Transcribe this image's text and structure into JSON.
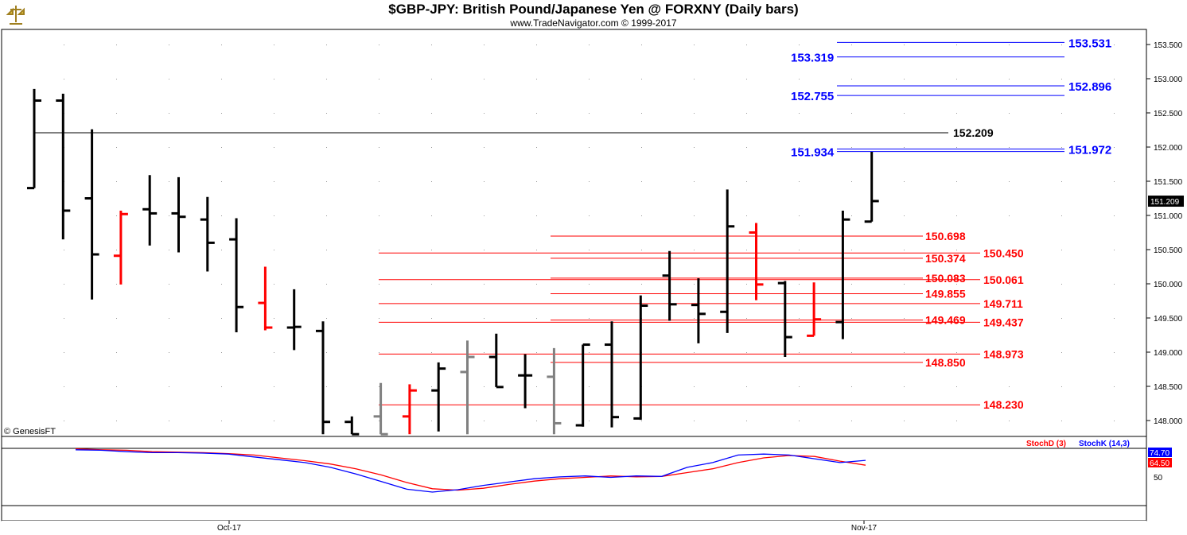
{
  "header": {
    "title": "$GBP-JPY:  British Pound/Japanese Yen @ FORXNY  (Daily bars)",
    "subtitle": "www.TradeNavigator.com © 1999-2017"
  },
  "watermark": "© GenesisFT",
  "colors": {
    "up_bar": "#000000",
    "down_bar": "#ff0000",
    "neutral_bar": "#808080",
    "blue_level": "#0000ff",
    "red_level": "#ff0000",
    "stochD": "#ff0000",
    "stochK": "#0000ff"
  },
  "chart_data": {
    "type": "ohlc",
    "x_ticks": [
      "Oct-17",
      "Nov-17"
    ],
    "y_ticks": [
      "148.000",
      "148.500",
      "149.000",
      "149.500",
      "150.000",
      "150.500",
      "151.000",
      "151.500",
      "152.000",
      "152.500",
      "153.000",
      "153.500"
    ],
    "ylim": [
      147.8,
      153.7
    ],
    "last_price": "151.209",
    "bars": [
      {
        "o": 151.4,
        "h": 152.85,
        "l": 151.4,
        "c": 152.68,
        "color": "black"
      },
      {
        "o": 152.68,
        "h": 152.78,
        "l": 150.65,
        "c": 151.07,
        "color": "black"
      },
      {
        "o": 151.25,
        "h": 152.26,
        "l": 149.77,
        "c": 150.43,
        "color": "black"
      },
      {
        "o": 150.41,
        "h": 151.07,
        "l": 149.99,
        "c": 151.02,
        "color": "red"
      },
      {
        "o": 151.09,
        "h": 151.59,
        "l": 150.56,
        "c": 151.03,
        "color": "black"
      },
      {
        "o": 151.03,
        "h": 151.56,
        "l": 150.46,
        "c": 150.98,
        "color": "black"
      },
      {
        "o": 150.94,
        "h": 151.27,
        "l": 150.18,
        "c": 150.6,
        "color": "black"
      },
      {
        "o": 150.65,
        "h": 150.96,
        "l": 149.29,
        "c": 149.66,
        "color": "black"
      },
      {
        "o": 149.72,
        "h": 150.25,
        "l": 149.32,
        "c": 149.36,
        "color": "red"
      },
      {
        "o": 149.36,
        "h": 149.92,
        "l": 149.03,
        "c": 149.37,
        "color": "black"
      },
      {
        "o": 149.31,
        "h": 149.45,
        "l": 147.8,
        "c": 147.98,
        "color": "black"
      },
      {
        "o": 147.98,
        "h": 148.06,
        "l": 147.8,
        "c": 147.8,
        "color": "black"
      },
      {
        "o": 148.06,
        "h": 148.55,
        "l": 147.8,
        "c": 147.8,
        "color": "gray"
      },
      {
        "o": 148.06,
        "h": 148.53,
        "l": 147.8,
        "c": 148.44,
        "color": "red"
      },
      {
        "o": 148.44,
        "h": 148.85,
        "l": 147.84,
        "c": 148.76,
        "color": "black"
      },
      {
        "o": 148.71,
        "h": 149.17,
        "l": 147.8,
        "c": 148.93,
        "color": "gray"
      },
      {
        "o": 148.93,
        "h": 149.27,
        "l": 148.49,
        "c": 148.49,
        "color": "black"
      },
      {
        "o": 148.66,
        "h": 148.97,
        "l": 148.18,
        "c": 148.66,
        "color": "black"
      },
      {
        "o": 148.64,
        "h": 149.06,
        "l": 147.8,
        "c": 147.96,
        "color": "gray"
      },
      {
        "o": 147.93,
        "h": 149.11,
        "l": 147.91,
        "c": 149.11,
        "color": "black"
      },
      {
        "o": 149.11,
        "h": 149.45,
        "l": 147.9,
        "c": 148.05,
        "color": "black"
      },
      {
        "o": 148.03,
        "h": 149.83,
        "l": 148.01,
        "c": 149.68,
        "color": "black"
      },
      {
        "o": 150.12,
        "h": 150.48,
        "l": 149.46,
        "c": 149.7,
        "color": "black"
      },
      {
        "o": 149.69,
        "h": 150.08,
        "l": 149.13,
        "c": 149.56,
        "color": "black"
      },
      {
        "o": 149.59,
        "h": 151.38,
        "l": 149.28,
        "c": 150.84,
        "color": "black"
      },
      {
        "o": 150.75,
        "h": 150.89,
        "l": 149.76,
        "c": 149.99,
        "color": "red"
      },
      {
        "o": 150.01,
        "h": 150.04,
        "l": 148.93,
        "c": 149.22,
        "color": "black"
      },
      {
        "o": 149.24,
        "h": 150.02,
        "l": 149.24,
        "c": 149.48,
        "color": "red"
      },
      {
        "o": 149.44,
        "h": 151.07,
        "l": 149.19,
        "c": 150.94,
        "color": "black"
      },
      {
        "o": 150.91,
        "h": 151.93,
        "l": 150.91,
        "c": 151.21,
        "color": "black"
      }
    ],
    "levels_blue": [
      {
        "value": 153.531,
        "label": "153.531",
        "side": "right"
      },
      {
        "value": 153.319,
        "label": "153.319",
        "side": "left"
      },
      {
        "value": 152.896,
        "label": "152.896",
        "side": "right"
      },
      {
        "value": 152.755,
        "label": "152.755",
        "side": "left"
      },
      {
        "value": 151.972,
        "label": "151.972",
        "side": "right"
      },
      {
        "value": 151.934,
        "label": "151.934",
        "side": "left"
      }
    ],
    "level_black": {
      "value": 152.209,
      "label": "152.209"
    },
    "levels_red_long": [
      {
        "value": 150.45,
        "label": "150.450"
      },
      {
        "value": 150.061,
        "label": "150.061"
      },
      {
        "value": 149.711,
        "label": "149.711"
      },
      {
        "value": 149.437,
        "label": "149.437"
      },
      {
        "value": 148.973,
        "label": "148.973"
      },
      {
        "value": 148.23,
        "label": "148.230"
      }
    ],
    "levels_red_short": [
      {
        "value": 150.698,
        "label": "150.698"
      },
      {
        "value": 150.374,
        "label": "150.374"
      },
      {
        "value": 150.083,
        "label": "150.083"
      },
      {
        "value": 149.855,
        "label": "149.855"
      },
      {
        "value": 149.469,
        "label": "149.469"
      },
      {
        "value": 148.85,
        "label": "148.850"
      }
    ],
    "stochastic": {
      "legend_d": "StochD (3)",
      "legend_k": "StochK (14,3)",
      "value_k": "74.70",
      "value_d": "64.50",
      "tick_label": "50",
      "ylim": [
        0,
        100
      ],
      "k": [
        97,
        96,
        93,
        91,
        91,
        90,
        88,
        82,
        76,
        70,
        60,
        46,
        30,
        14,
        8,
        13,
        22,
        29,
        36,
        40,
        42,
        39,
        42,
        41,
        60,
        70,
        86,
        88,
        86,
        78,
        70,
        74.7
      ],
      "d": [
        99,
        97,
        96,
        93,
        92,
        91,
        89,
        86,
        80,
        74,
        67,
        57,
        44,
        28,
        15,
        12,
        16,
        24,
        31,
        36,
        39,
        42,
        40,
        41,
        49,
        57,
        70,
        80,
        85,
        83,
        73,
        64.5
      ]
    }
  }
}
